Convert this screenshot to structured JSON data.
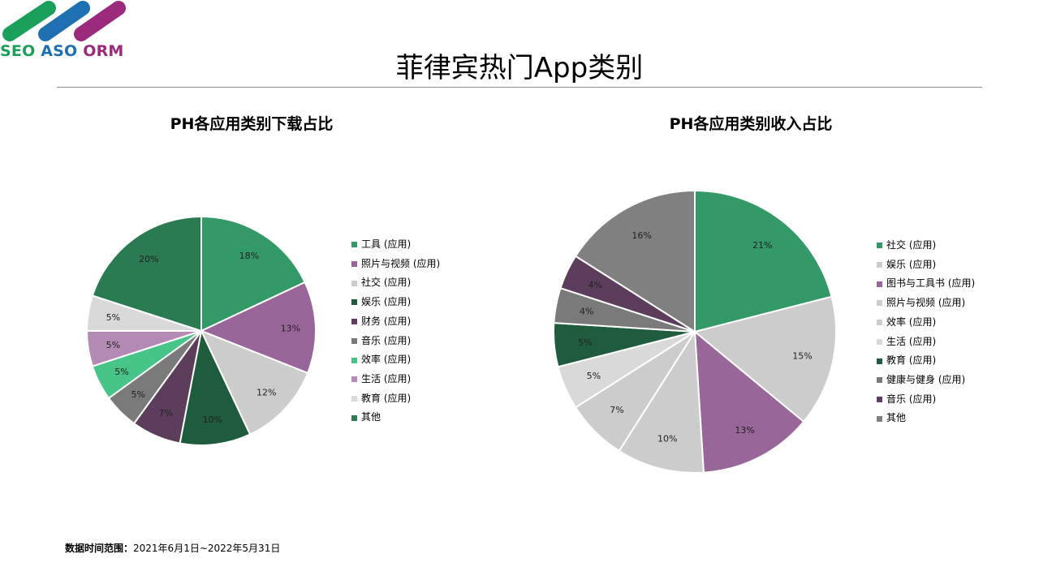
{
  "logo": {
    "word1": "SEO",
    "word2": "ASO",
    "word3": "ORM"
  },
  "page_title": "菲律宾热门App类别",
  "footer": {
    "label": "数据时间范围：",
    "value": "2021年6月1日~2022年5月31日"
  },
  "colors": {
    "green": "#339966",
    "purple": "#996699",
    "light_gray": "#cccccc",
    "dark_green": "#1f5c3d",
    "dark_purple": "#5c3d5c",
    "gray": "#7a7a7a",
    "bright_green": "#47c488",
    "light_purple": "#b38ab3",
    "pale_gray": "#d9d9d9",
    "deep_green": "#2a7a52"
  },
  "chart_data": [
    {
      "type": "pie",
      "title": "PH各应用类别下载占比",
      "categories": [
        "工具 (应用)",
        "照片与视频 (应用)",
        "社交 (应用)",
        "娱乐 (应用)",
        "财务 (应用)",
        "音乐 (应用)",
        "效率 (应用)",
        "生活 (应用)",
        "教育 (应用)",
        "其他"
      ],
      "values": [
        18,
        13,
        12,
        10,
        7,
        5,
        5,
        5,
        5,
        20
      ],
      "labels": [
        "18%",
        "13%",
        "12%",
        "10%",
        "7%",
        "5%",
        "5%",
        "5%",
        "5%",
        "20%"
      ],
      "colors": [
        "#339966",
        "#996699",
        "#cccccc",
        "#1f5c3d",
        "#5c3d5c",
        "#7a7a7a",
        "#47c488",
        "#b38ab3",
        "#d9d9d9",
        "#2a7a52"
      ],
      "legend": "right"
    },
    {
      "type": "pie",
      "title": "PH各应用类别收入占比",
      "categories": [
        "社交 (应用)",
        "娱乐 (应用)",
        "图书与工具书 (应用)",
        "照片与视频 (应用)",
        "效率 (应用)",
        "生活 (应用)",
        "教育 (应用)",
        "健康与健身 (应用)",
        "音乐 (应用)",
        "其他"
      ],
      "values": [
        21,
        15,
        13,
        10,
        7,
        5,
        5,
        4,
        4,
        16
      ],
      "labels": [
        "21%",
        "15%",
        "13%",
        "10%",
        "7%",
        "5%",
        "5%",
        "4%",
        "4%",
        "16%"
      ],
      "colors": [
        "#339966",
        "#cccccc",
        "#996699",
        "#cccccc",
        "#cccccc",
        "#d9d9d9",
        "#1f5c3d",
        "#7a7a7a",
        "#5c3d5c",
        "#808080"
      ],
      "legend": "right"
    }
  ]
}
